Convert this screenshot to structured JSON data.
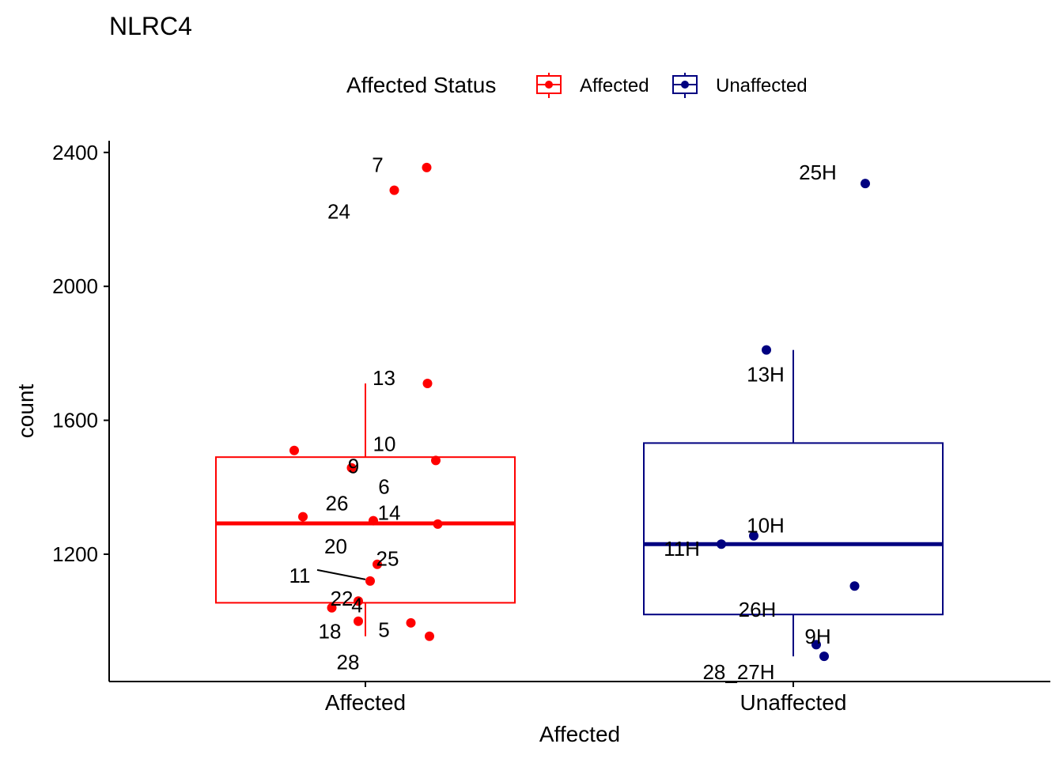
{
  "chart_data": {
    "type": "box",
    "title": "NLRC4",
    "xlabel": "Affected",
    "ylabel": "count",
    "ylim": [
      820,
      2430
    ],
    "yticks": [
      1200,
      1600,
      2000,
      2400
    ],
    "grid": false,
    "legend": {
      "title": "Affected Status",
      "placement": "top",
      "entries": [
        {
          "label": "Affected",
          "color": "#ff0000"
        },
        {
          "label": "Unaffected",
          "color": "#000080"
        }
      ]
    },
    "categories": [
      "Affected",
      "Unaffected"
    ],
    "boxes": [
      {
        "name": "Affected",
        "color": "#ff0000",
        "whisker_low": 955,
        "q1": 1055,
        "median": 1292,
        "q3": 1490,
        "whisker_high": 1710
      },
      {
        "name": "Unaffected",
        "color": "#000080",
        "whisker_low": 895,
        "q1": 1020,
        "median": 1230,
        "q3": 1532,
        "whisker_high": 1810
      }
    ],
    "points": [
      {
        "group": "Affected",
        "label": "7",
        "x": 0.155,
        "y": 2355
      },
      {
        "group": "Affected",
        "label": "24",
        "x": 0.073,
        "y": 2287
      },
      {
        "group": "Affected",
        "label": "13",
        "x": 0.157,
        "y": 1710
      },
      {
        "group": "Affected",
        "label": "10",
        "x": 0.178,
        "y": 1480
      },
      {
        "group": "Affected",
        "label": "9",
        "x": -0.18,
        "y": 1510
      },
      {
        "group": "Affected",
        "label": "6",
        "x": -0.035,
        "y": 1458
      },
      {
        "group": "Affected",
        "label": "26",
        "x": -0.158,
        "y": 1312
      },
      {
        "group": "Affected",
        "label": "14",
        "x": 0.02,
        "y": 1300
      },
      {
        "group": "Affected",
        "label": "20",
        "x": 0.183,
        "y": 1290
      },
      {
        "group": "Affected",
        "label": "25",
        "x": 0.03,
        "y": 1170
      },
      {
        "group": "Affected",
        "label": "11",
        "x": 0.012,
        "y": 1120
      },
      {
        "group": "Affected",
        "label": "22",
        "x": -0.018,
        "y": 1060
      },
      {
        "group": "Affected",
        "label": "4",
        "x": -0.085,
        "y": 1040
      },
      {
        "group": "Affected",
        "label": "18",
        "x": -0.018,
        "y": 1000
      },
      {
        "group": "Affected",
        "label": "5",
        "x": 0.115,
        "y": 995
      },
      {
        "group": "Affected",
        "label": "28",
        "x": 0.162,
        "y": 955
      },
      {
        "group": "Unaffected",
        "label": "25H",
        "x": 0.182,
        "y": 2307
      },
      {
        "group": "Unaffected",
        "label": "13H",
        "x": -0.068,
        "y": 1810
      },
      {
        "group": "Unaffected",
        "label": "10H",
        "x": -0.1,
        "y": 1255
      },
      {
        "group": "Unaffected",
        "label": "11H",
        "x": -0.182,
        "y": 1230
      },
      {
        "group": "Unaffected",
        "label": "26H",
        "x": 0.155,
        "y": 1105
      },
      {
        "group": "Unaffected",
        "label": "9H",
        "x": 0.058,
        "y": 930
      },
      {
        "group": "Unaffected",
        "label": "28_27H",
        "x": 0.078,
        "y": 895
      }
    ]
  }
}
